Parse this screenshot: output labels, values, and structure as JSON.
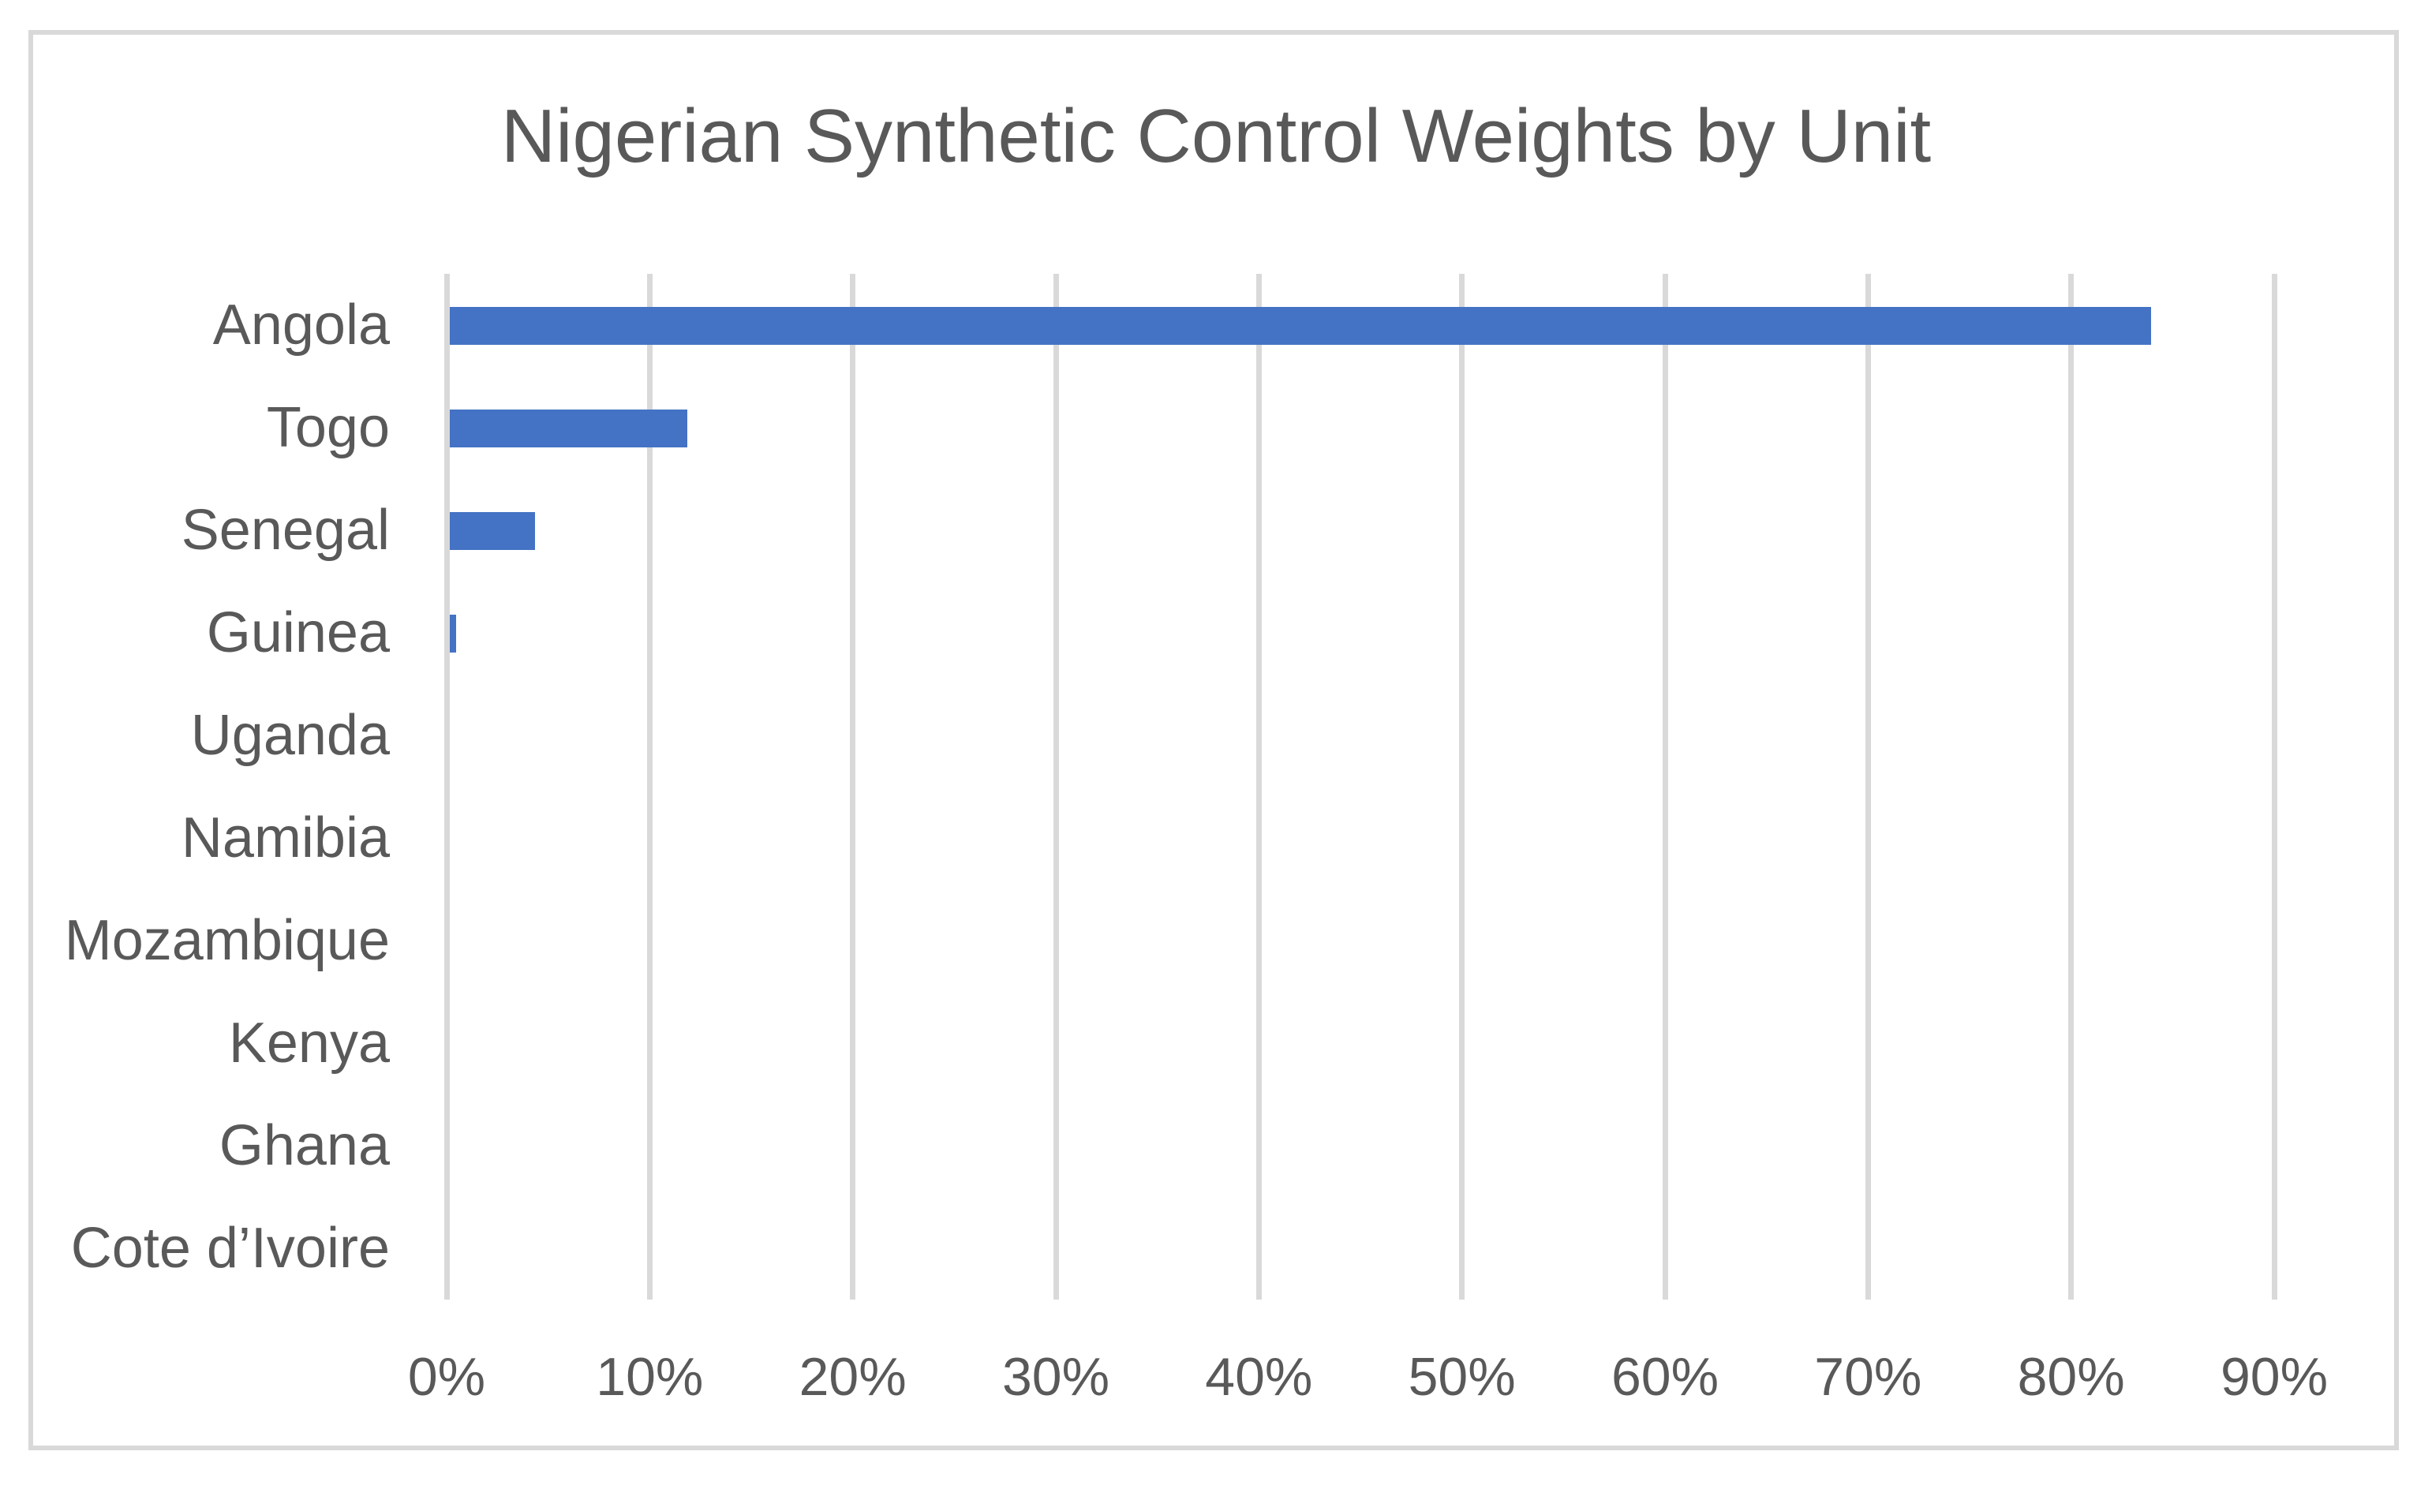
{
  "chart": {
    "title": "Nigerian Synthetic Control Weights by Unit"
  },
  "chart_data": {
    "type": "bar",
    "orientation": "horizontal",
    "title": "Nigerian Synthetic Control Weights by Unit",
    "categories": [
      "Angola",
      "Togo",
      "Senegal",
      "Guinea",
      "Uganda",
      "Namibia",
      "Mozambique",
      "Kenya",
      "Ghana",
      "Cote d’Ivoire"
    ],
    "values": [
      83.8,
      11.7,
      4.2,
      0.3,
      0,
      0,
      0,
      0,
      0,
      0
    ],
    "xlabel": "",
    "ylabel": "",
    "xlim": [
      0,
      90
    ],
    "xticks": [
      0,
      10,
      20,
      30,
      40,
      50,
      60,
      70,
      80,
      90
    ],
    "xtick_labels": [
      "0%",
      "10%",
      "20%",
      "30%",
      "40%",
      "50%",
      "60%",
      "70%",
      "80%",
      "90%"
    ],
    "grid": "vertical-only",
    "legend": false,
    "colors": {
      "bar": "#4472C4",
      "gridline": "#D9D9D9",
      "frame_border": "#D9D9D9",
      "text": "#595959",
      "background": "#FFFFFF"
    }
  }
}
